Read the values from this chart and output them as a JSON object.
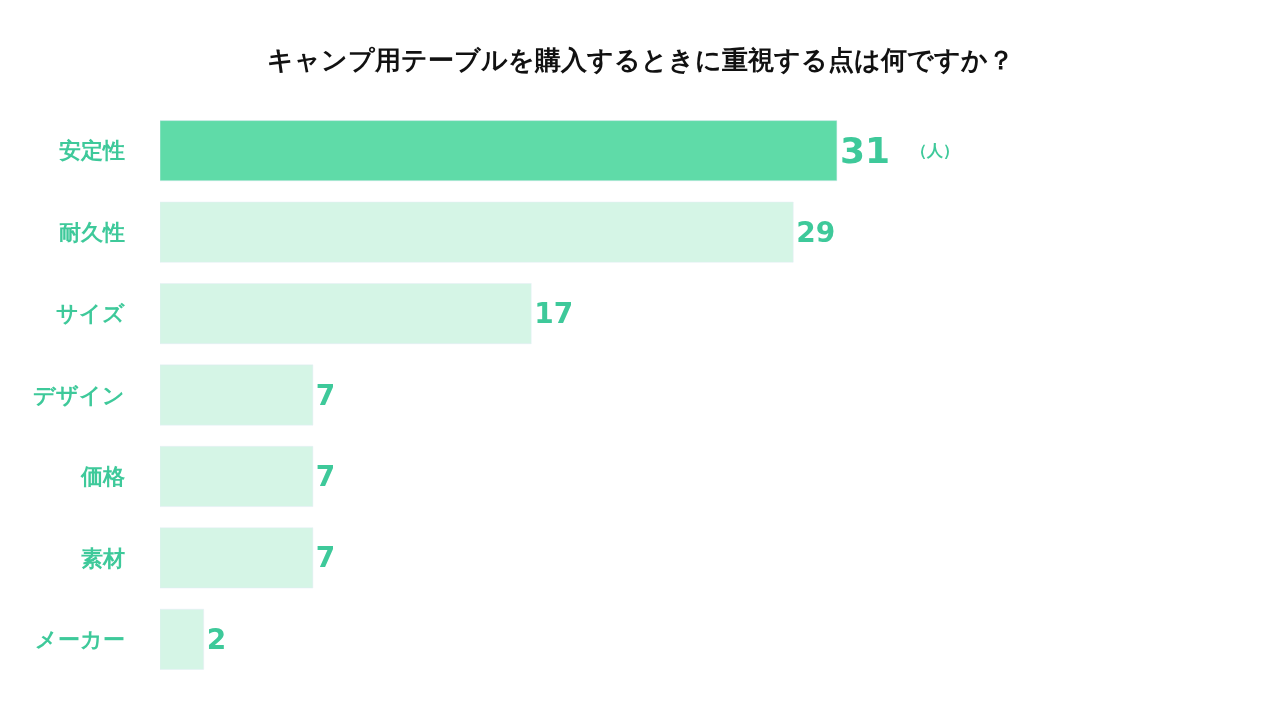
{
  "chart_data": {
    "type": "bar",
    "orientation": "horizontal",
    "title": "キャンプ用テーブルを購入するときに重視する点は何ですか？",
    "categories": [
      "安定性",
      "耐久性",
      "サイズ",
      "デザイン",
      "価格",
      "素材",
      "メーカー"
    ],
    "values": [
      31,
      29,
      17,
      7,
      7,
      7,
      2
    ],
    "colors": [
      "#5fdba8",
      "#d5f5e6",
      "#d5f5e6",
      "#d5f5e6",
      "#d5f5e6",
      "#d5f5e6",
      "#d5f5e6"
    ],
    "data_labels": true,
    "annotations": [
      "（人）"
    ],
    "legend": false
  }
}
